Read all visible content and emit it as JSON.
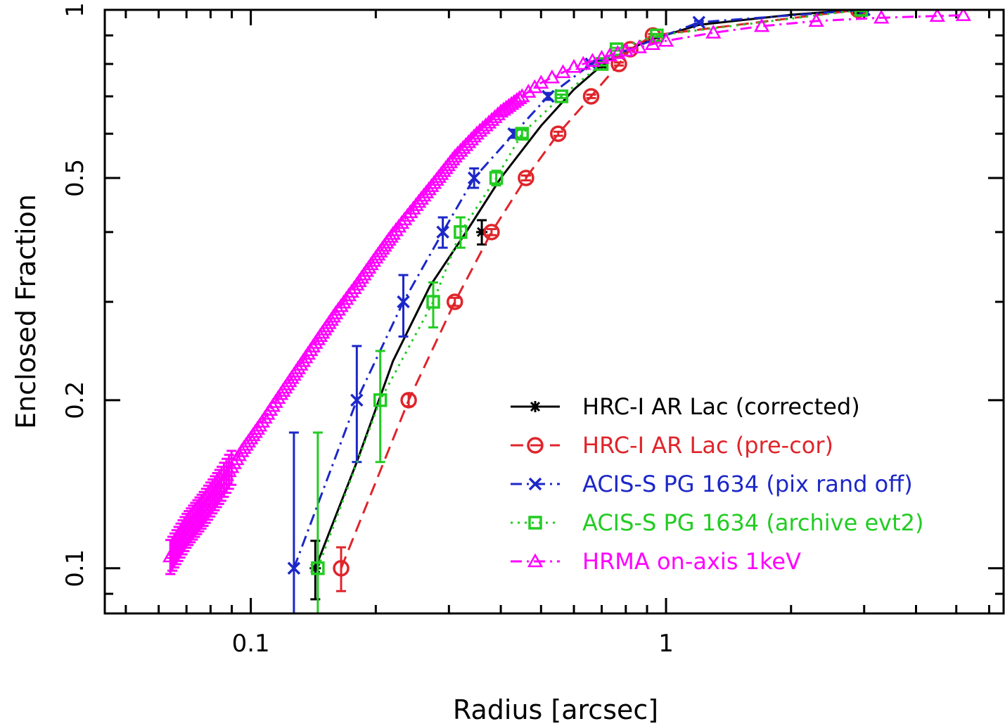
{
  "chart_data": {
    "type": "scatter",
    "xlabel": "Radius [arcsec]",
    "ylabel": "Enclosed Fraction",
    "x_scale": "log",
    "y_scale": "log",
    "xlim": [
      0.0445,
      6.5
    ],
    "ylim": [
      0.083,
      1.0
    ],
    "x_ticks": [
      {
        "value": 0.1,
        "label": "0.1"
      },
      {
        "value": 1,
        "label": "1"
      }
    ],
    "y_ticks": [
      {
        "value": 0.1,
        "label": "0.1"
      },
      {
        "value": 0.2,
        "label": "0.2"
      },
      {
        "value": 0.5,
        "label": "0.5"
      },
      {
        "value": 1,
        "label": "1"
      }
    ],
    "grid": false,
    "legend_position": "bottom-right",
    "series": [
      {
        "name": "HRC-I AR Lac (corrected)",
        "color": "#000000",
        "marker": "star",
        "line": "solid",
        "points": [
          {
            "x": 0.143,
            "y": 0.1,
            "lo": 0.088,
            "hi": 0.112
          },
          {
            "x": 0.36,
            "y": 0.4,
            "lo": 0.38,
            "hi": 0.42
          },
          {
            "x": 0.7,
            "y": 0.8,
            "lo": 0.79,
            "hi": 0.81
          },
          {
            "x": 2.9,
            "y": 1.0,
            "lo": 0.99,
            "hi": 1.0
          }
        ],
        "line_points": [
          [
            0.143,
            0.1
          ],
          [
            0.18,
            0.155
          ],
          [
            0.22,
            0.235
          ],
          [
            0.27,
            0.32
          ],
          [
            0.33,
            0.4
          ],
          [
            0.4,
            0.5
          ],
          [
            0.5,
            0.62
          ],
          [
            0.6,
            0.72
          ],
          [
            0.72,
            0.81
          ],
          [
            0.9,
            0.88
          ],
          [
            1.2,
            0.94
          ],
          [
            2.0,
            0.98
          ],
          [
            2.9,
            1.0
          ]
        ]
      },
      {
        "name": "HRC-I AR Lac (pre-cor)",
        "color": "#e0242b",
        "marker": "circle",
        "line": "dashed",
        "points": [
          {
            "x": 0.165,
            "y": 0.1,
            "lo": 0.091,
            "hi": 0.109
          },
          {
            "x": 0.24,
            "y": 0.2,
            "lo": 0.195,
            "hi": 0.205
          },
          {
            "x": 0.31,
            "y": 0.3,
            "lo": 0.295,
            "hi": 0.305
          },
          {
            "x": 0.38,
            "y": 0.4,
            "lo": 0.395,
            "hi": 0.405
          },
          {
            "x": 0.46,
            "y": 0.5,
            "lo": 0.495,
            "hi": 0.505
          },
          {
            "x": 0.55,
            "y": 0.6,
            "lo": 0.595,
            "hi": 0.605
          },
          {
            "x": 0.66,
            "y": 0.7,
            "lo": 0.695,
            "hi": 0.705
          },
          {
            "x": 0.77,
            "y": 0.8,
            "lo": 0.795,
            "hi": 0.805
          },
          {
            "x": 0.82,
            "y": 0.85,
            "lo": 0.845,
            "hi": 0.855
          },
          {
            "x": 0.93,
            "y": 0.9,
            "lo": 0.895,
            "hi": 0.905
          },
          {
            "x": 2.9,
            "y": 1.0,
            "lo": 0.995,
            "hi": 1.0
          }
        ]
      },
      {
        "name": "ACIS-S PG 1634 (pix rand off)",
        "color": "#1c27c8",
        "marker": "cross",
        "line": "dashdot",
        "points": [
          {
            "x": 0.127,
            "y": 0.1,
            "lo": 0.07,
            "hi": 0.175
          },
          {
            "x": 0.18,
            "y": 0.2,
            "lo": 0.155,
            "hi": 0.25
          },
          {
            "x": 0.233,
            "y": 0.3,
            "lo": 0.26,
            "hi": 0.335
          },
          {
            "x": 0.29,
            "y": 0.4,
            "lo": 0.375,
            "hi": 0.425
          },
          {
            "x": 0.345,
            "y": 0.5,
            "lo": 0.48,
            "hi": 0.52
          },
          {
            "x": 0.43,
            "y": 0.6,
            "lo": 0.59,
            "hi": 0.61
          },
          {
            "x": 0.52,
            "y": 0.7,
            "lo": 0.69,
            "hi": 0.71
          },
          {
            "x": 0.66,
            "y": 0.8,
            "lo": 0.795,
            "hi": 0.805
          },
          {
            "x": 1.2,
            "y": 0.95,
            "lo": 0.945,
            "hi": 0.955
          },
          {
            "x": 3.0,
            "y": 1.0,
            "lo": 0.995,
            "hi": 1.0
          }
        ]
      },
      {
        "name": "ACIS-S PG 1634 (archive evt2)",
        "color": "#22cc22",
        "marker": "square",
        "line": "dotted",
        "points": [
          {
            "x": 0.145,
            "y": 0.1,
            "lo": 0.07,
            "hi": 0.175
          },
          {
            "x": 0.205,
            "y": 0.2,
            "lo": 0.155,
            "hi": 0.245
          },
          {
            "x": 0.275,
            "y": 0.3,
            "lo": 0.27,
            "hi": 0.325
          },
          {
            "x": 0.32,
            "y": 0.4,
            "lo": 0.375,
            "hi": 0.425
          },
          {
            "x": 0.39,
            "y": 0.5,
            "lo": 0.485,
            "hi": 0.515
          },
          {
            "x": 0.45,
            "y": 0.6,
            "lo": 0.59,
            "hi": 0.61
          },
          {
            "x": 0.56,
            "y": 0.7,
            "lo": 0.695,
            "hi": 0.705
          },
          {
            "x": 0.7,
            "y": 0.8,
            "lo": 0.795,
            "hi": 0.805
          },
          {
            "x": 0.76,
            "y": 0.85,
            "lo": 0.845,
            "hi": 0.855
          },
          {
            "x": 0.95,
            "y": 0.9,
            "lo": 0.895,
            "hi": 0.905
          },
          {
            "x": 2.95,
            "y": 1.0,
            "lo": 0.995,
            "hi": 1.0
          }
        ]
      },
      {
        "name": "HRMA on-axis 1keV",
        "color": "#ff00ff",
        "marker": "triangle",
        "line": "dashdot",
        "curve": [
          [
            0.064,
            0.105
          ],
          [
            0.07,
            0.117
          ],
          [
            0.077,
            0.128
          ],
          [
            0.085,
            0.142
          ],
          [
            0.095,
            0.162
          ],
          [
            0.105,
            0.18
          ],
          [
            0.118,
            0.205
          ],
          [
            0.13,
            0.228
          ],
          [
            0.145,
            0.257
          ],
          [
            0.16,
            0.286
          ],
          [
            0.18,
            0.322
          ],
          [
            0.2,
            0.36
          ],
          [
            0.22,
            0.397
          ],
          [
            0.25,
            0.447
          ],
          [
            0.28,
            0.496
          ],
          [
            0.31,
            0.546
          ],
          [
            0.35,
            0.6
          ],
          [
            0.4,
            0.657
          ],
          [
            0.45,
            0.7
          ],
          [
            0.5,
            0.74
          ],
          [
            0.6,
            0.79
          ],
          [
            0.7,
            0.82
          ],
          [
            0.8,
            0.845
          ],
          [
            1.0,
            0.88
          ],
          [
            1.3,
            0.91
          ],
          [
            1.7,
            0.935
          ],
          [
            2.3,
            0.955
          ],
          [
            3.3,
            0.968
          ],
          [
            4.5,
            0.975
          ],
          [
            5.2,
            0.978
          ]
        ],
        "error_bar_x_max": 0.09,
        "error_fraction": 0.07
      }
    ]
  }
}
